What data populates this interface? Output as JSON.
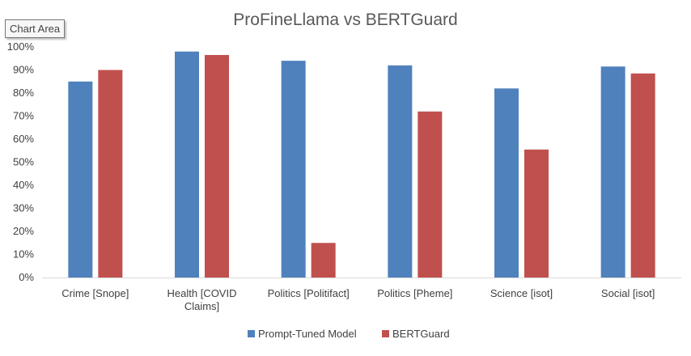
{
  "tooltip": {
    "label": "Chart Area"
  },
  "chart_data": {
    "type": "bar",
    "title": "ProFineLlama vs BERTGuard",
    "xlabel": "",
    "ylabel": "",
    "categories": [
      [
        "Crime [Snope]"
      ],
      [
        "Health [COVID",
        "Claims]"
      ],
      [
        "Politics [Politifact]"
      ],
      [
        "Politics [Pheme]"
      ],
      [
        "Science [isot]"
      ],
      [
        "Social [isot]"
      ]
    ],
    "series": [
      {
        "name": "Prompt-Tuned Model",
        "color": "#4f81bd",
        "values": [
          85,
          98,
          94,
          92,
          82,
          91.5
        ]
      },
      {
        "name": "BERTGuard",
        "color": "#c0504d",
        "values": [
          90,
          96.5,
          15,
          72,
          55.5,
          88.5
        ]
      }
    ],
    "ylim": [
      0,
      100
    ],
    "yticks": [
      0,
      10,
      20,
      30,
      40,
      50,
      60,
      70,
      80,
      90,
      100
    ],
    "ytick_labels": [
      "0%",
      "10%",
      "20%",
      "30%",
      "40%",
      "50%",
      "60%",
      "70%",
      "80%",
      "90%",
      "100%"
    ],
    "grid": false,
    "legend_position": "bottom"
  }
}
